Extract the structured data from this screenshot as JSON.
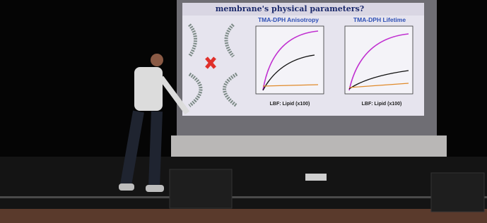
{
  "slide": {
    "title": "membrane's physical parameters?",
    "panels": [
      {
        "title": "TMA-DPH Anisotropy",
        "x_label": "LBF: Lipid (x100)"
      },
      {
        "title": "TMA-DPH Lifetime",
        "x_label": "LBF: Lipid (x100)"
      }
    ]
  }
}
